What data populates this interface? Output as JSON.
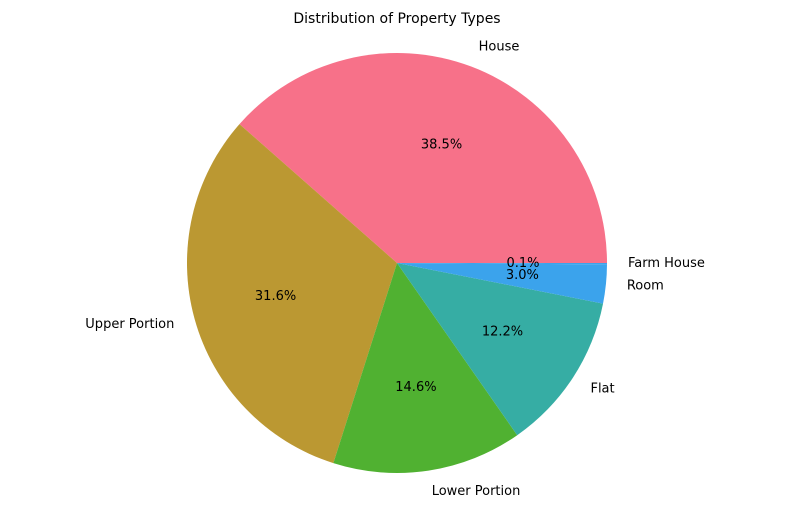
{
  "chart_data": {
    "type": "pie",
    "title": "Distribution of Property Types",
    "start_angle_deg": 0,
    "direction": "counterclockwise",
    "slices": [
      {
        "label": "House",
        "pct_label": "38.5%",
        "value": 38.5,
        "color": "#f77189"
      },
      {
        "label": "Upper Portion",
        "pct_label": "31.6%",
        "value": 31.6,
        "color": "#bb9832"
      },
      {
        "label": "Lower Portion",
        "pct_label": "14.6%",
        "value": 14.6,
        "color": "#50b131"
      },
      {
        "label": "Flat",
        "pct_label": "12.2%",
        "value": 12.2,
        "color": "#36ada4"
      },
      {
        "label": "Room",
        "pct_label": "3.0%",
        "value": 3.0,
        "color": "#3ba3ec"
      },
      {
        "label": "Farm House",
        "pct_label": "0.1%",
        "value": 0.1,
        "color": "#3ba3ec"
      }
    ]
  }
}
